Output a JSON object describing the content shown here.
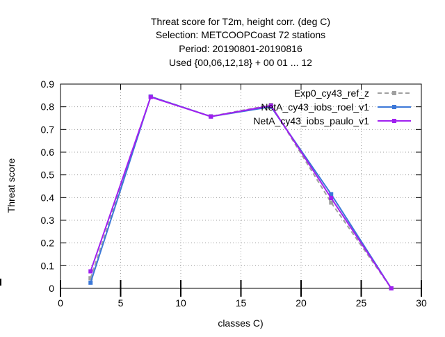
{
  "chart_data": {
    "type": "line",
    "title_lines": [
      "Threat score  for T2m, height corr. (deg C)",
      "Selection: METCOOPCoast     72 stations",
      "Period: 20190801-20190816",
      "Used {00,06,12,18} + 00 01 ... 12"
    ],
    "xlabel": "classes C)",
    "ylabel": "Threat score",
    "xlim": [
      0,
      30
    ],
    "ylim": [
      0,
      0.9
    ],
    "xticks": [
      0,
      5,
      10,
      15,
      20,
      25,
      30
    ],
    "xtick_labels": [
      "0",
      "5",
      "10",
      "15",
      "20",
      "25",
      "30"
    ],
    "yticks": [
      0,
      0.1,
      0.2,
      0.3,
      0.4,
      0.5,
      0.6,
      0.7,
      0.8,
      0.9
    ],
    "ytick_labels": [
      "0",
      "0.1",
      "0.2",
      "0.3",
      "0.4",
      "0.5",
      "0.6",
      "0.7",
      "0.8",
      "0.9"
    ],
    "grid": true,
    "legend_position": "top-right",
    "x": [
      2.5,
      7.5,
      12.5,
      17.5,
      22.5,
      27.5
    ],
    "series": [
      {
        "name": "Exp0_cy43_ref_z",
        "color": "#a0a0a0",
        "dash": true,
        "marker": "square",
        "values": [
          0.045,
          0.845,
          0.758,
          0.808,
          0.378,
          0.0
        ]
      },
      {
        "name": "NetA_cy43_iobs_roel_v1",
        "color": "#3c78d8",
        "dash": false,
        "marker": "square",
        "values": [
          0.025,
          0.845,
          0.757,
          0.8,
          0.415,
          0.0
        ]
      },
      {
        "name": "NetA_cy43_iobs_paulo_v1",
        "color": "#a020f0",
        "dash": false,
        "marker": "square",
        "values": [
          0.075,
          0.843,
          0.757,
          0.805,
          0.398,
          0.0
        ]
      }
    ]
  }
}
